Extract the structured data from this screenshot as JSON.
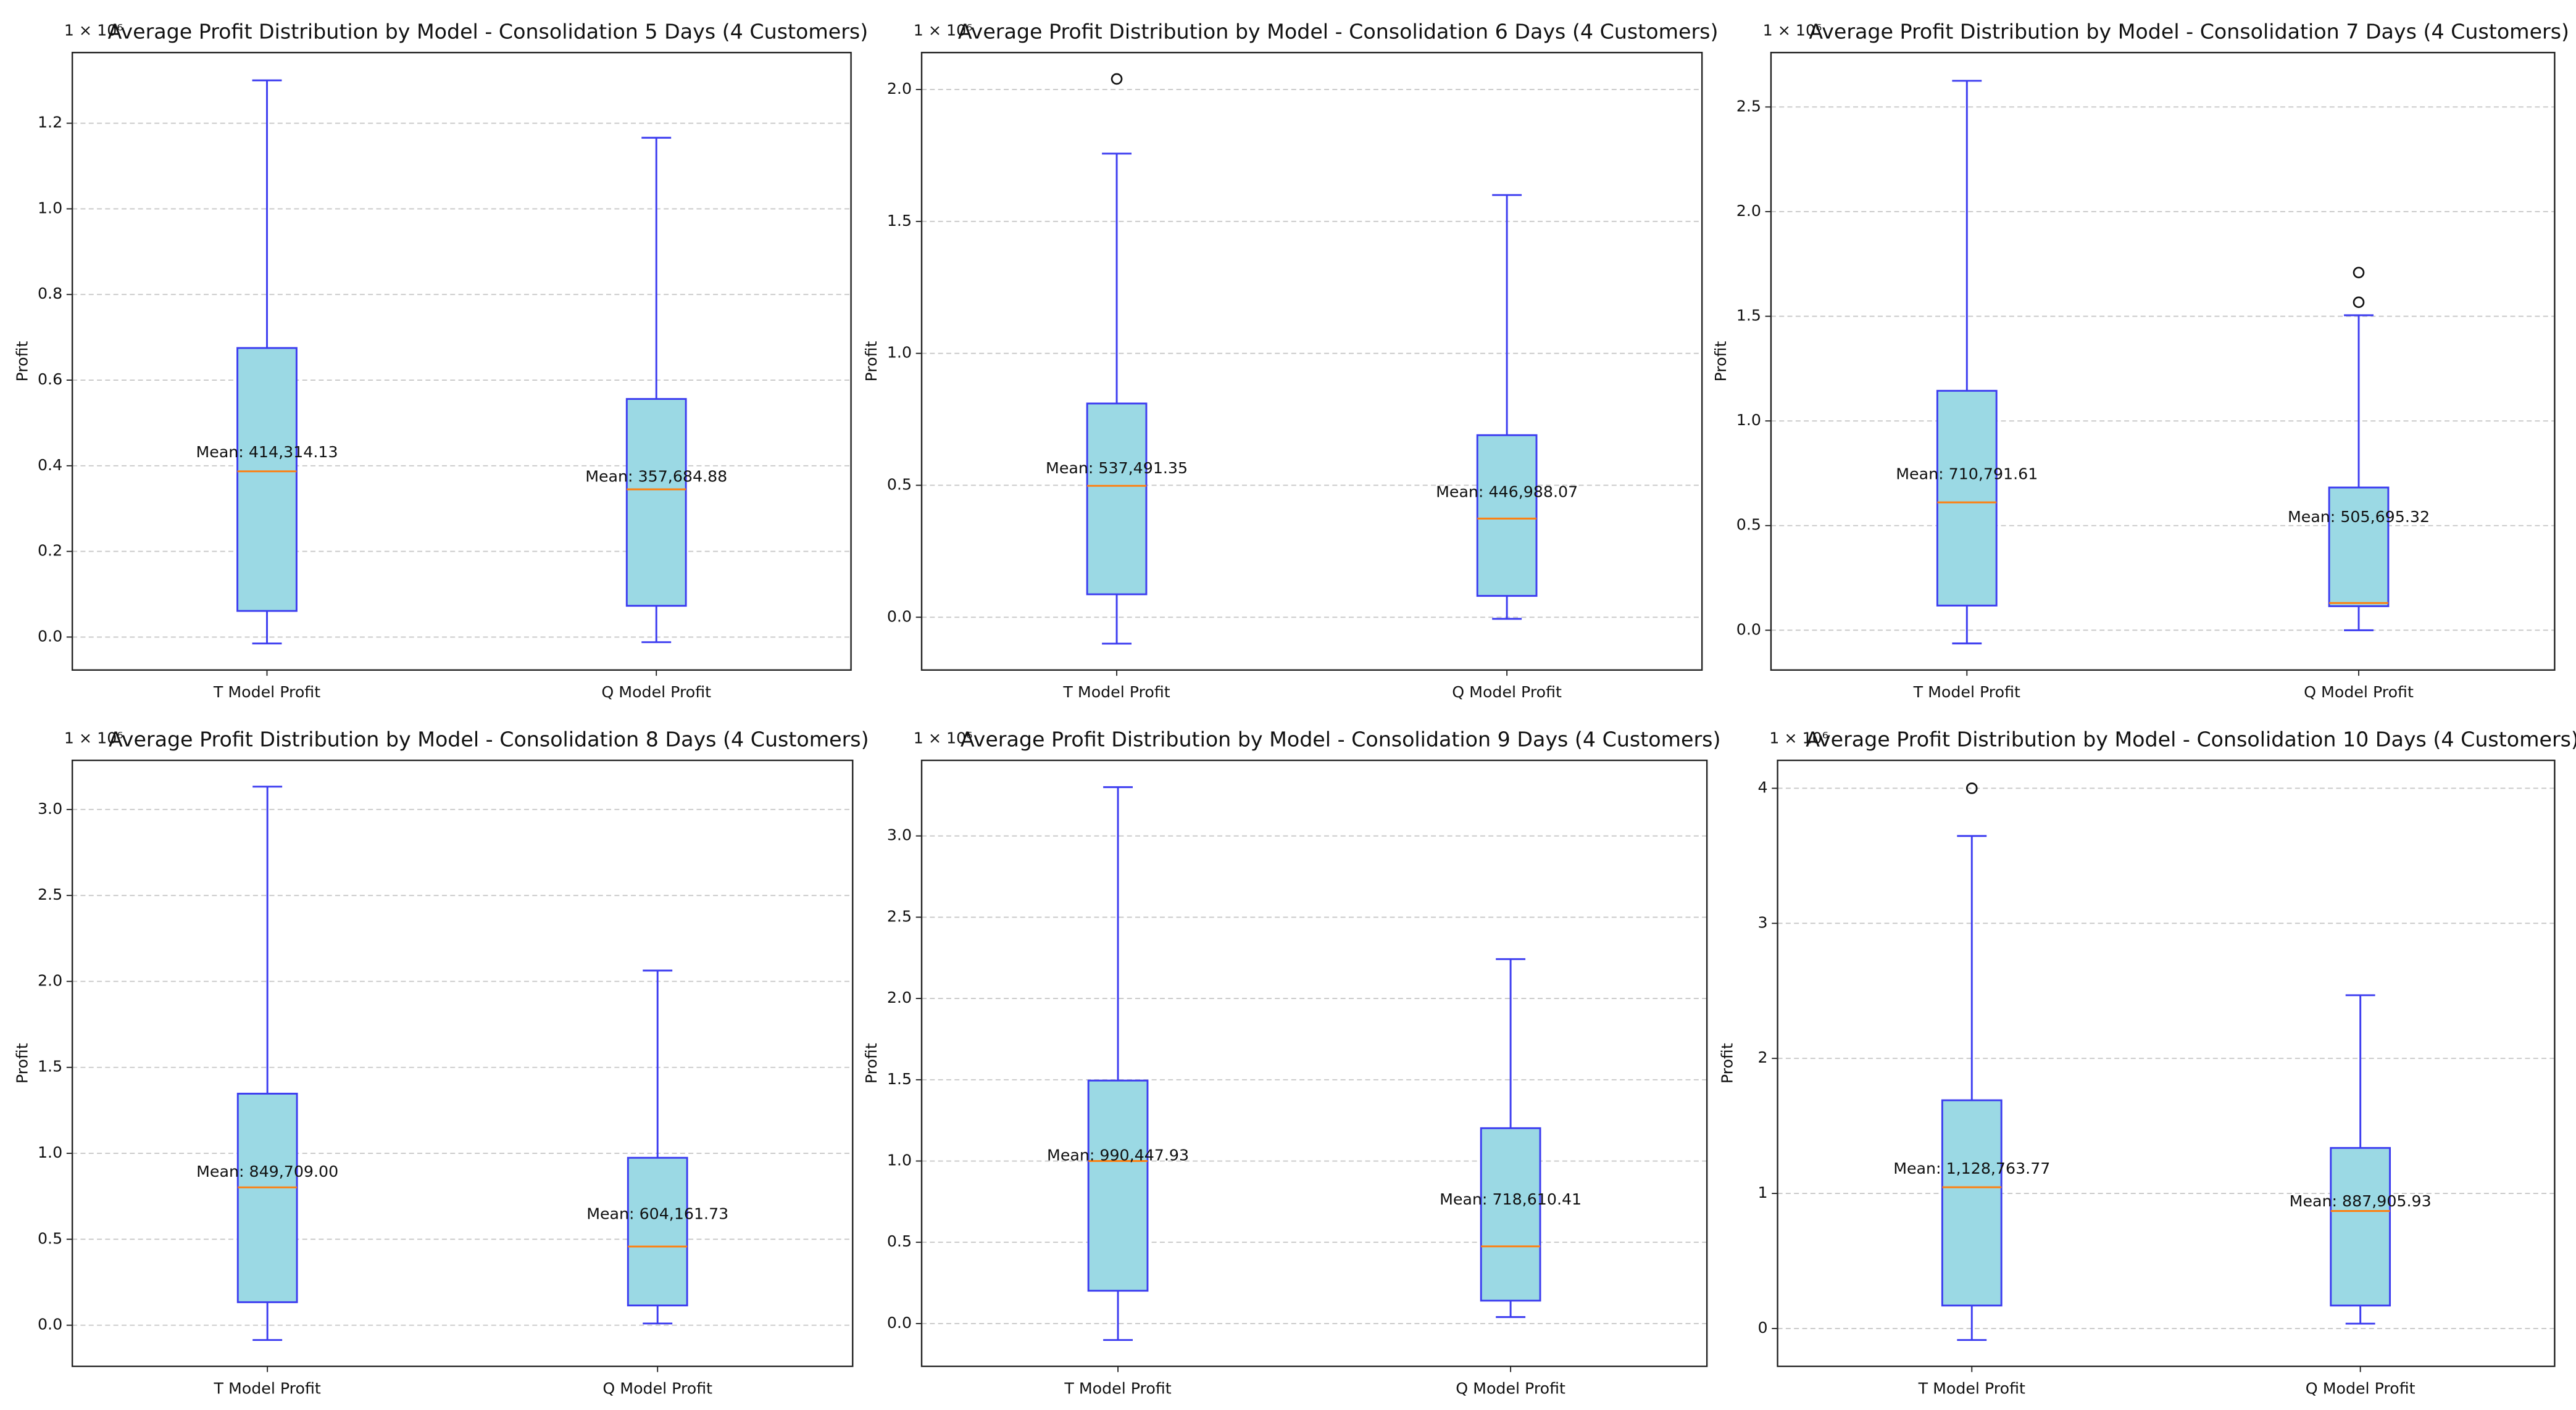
{
  "chart_data": [
    {
      "type": "box",
      "offset_label": "1 × 10⁶",
      "title": "Average Profit Distribution by Model - Consolidation 5 Days (4 Customers)",
      "ylabel": "Profit",
      "categories": [
        "T Model Profit",
        "Q Model Profit"
      ],
      "boxes": [
        {
          "whisker_low": -0.015,
          "q1": 0.061,
          "median": 0.387,
          "q3": 0.675,
          "whisker_high": 1.3,
          "outliers": [],
          "mean": 0.41431413,
          "mean_label": "Mean: 414,314.13"
        },
        {
          "whisker_low": -0.012,
          "q1": 0.073,
          "median": 0.345,
          "q3": 0.556,
          "whisker_high": 1.166,
          "outliers": [],
          "mean": 0.35768488,
          "mean_label": "Mean: 357,684.88"
        }
      ],
      "ylim": [
        -0.077,
        1.365
      ],
      "yticks": [
        {
          "value": 0,
          "label": "0.0"
        },
        {
          "value": 0.2,
          "label": "0.2"
        },
        {
          "value": 0.4,
          "label": "0.4"
        },
        {
          "value": 0.6,
          "label": "0.6"
        },
        {
          "value": 0.8,
          "label": "0.8"
        },
        {
          "value": 1.0,
          "label": "1.0"
        },
        {
          "value": 1.2,
          "label": "1.2"
        }
      ],
      "grid": true,
      "box_color": "#9bd9e4",
      "edge_color": "#3c3cf0",
      "median_color": "#ff7f0e",
      "mean_label_color": "#0000ff"
    },
    {
      "type": "box",
      "offset_label": "1 × 10⁶",
      "title": "Average Profit Distribution by Model - Consolidation 6 Days (4 Customers)",
      "ylabel": "Profit",
      "categories": [
        "T Model Profit",
        "Q Model Profit"
      ],
      "boxes": [
        {
          "whisker_low": -0.1,
          "q1": 0.087,
          "median": 0.498,
          "q3": 0.81,
          "whisker_high": 1.757,
          "outliers": [
            2.04
          ],
          "mean": 0.53749135,
          "mean_label": "Mean: 537,491.35"
        },
        {
          "whisker_low": -0.006,
          "q1": 0.081,
          "median": 0.374,
          "q3": 0.69,
          "whisker_high": 1.6,
          "outliers": [],
          "mean": 0.44698807,
          "mean_label": "Mean: 446,988.07"
        }
      ],
      "ylim": [
        -0.2,
        2.14
      ],
      "yticks": [
        {
          "value": 0,
          "label": "0.0"
        },
        {
          "value": 0.5,
          "label": "0.5"
        },
        {
          "value": 1.0,
          "label": "1.0"
        },
        {
          "value": 1.5,
          "label": "1.5"
        },
        {
          "value": 2.0,
          "label": "2.0"
        }
      ],
      "grid": true,
      "box_color": "#9bd9e4",
      "edge_color": "#3c3cf0",
      "median_color": "#ff7f0e",
      "mean_label_color": "#0000ff"
    },
    {
      "type": "box",
      "offset_label": "1 × 10⁶",
      "title": "Average Profit Distribution by Model - Consolidation 7 Days (4 Customers)",
      "ylabel": "Profit",
      "categories": [
        "T Model Profit",
        "Q Model Profit"
      ],
      "boxes": [
        {
          "whisker_low": -0.063,
          "q1": 0.118,
          "median": 0.611,
          "q3": 1.144,
          "whisker_high": 2.625,
          "outliers": [],
          "mean": 0.71079161,
          "mean_label": "Mean: 710,791.61"
        },
        {
          "whisker_low": 0.0,
          "q1": 0.115,
          "median": 0.13,
          "q3": 0.682,
          "whisker_high": 1.505,
          "outliers": [
            1.567,
            1.709
          ],
          "mean": 0.50569532,
          "mean_label": "Mean: 505,695.32"
        }
      ],
      "ylim": [
        -0.19,
        2.76
      ],
      "yticks": [
        {
          "value": 0,
          "label": "0.0"
        },
        {
          "value": 0.5,
          "label": "0.5"
        },
        {
          "value": 1.0,
          "label": "1.0"
        },
        {
          "value": 1.5,
          "label": "1.5"
        },
        {
          "value": 2.0,
          "label": "2.0"
        },
        {
          "value": 2.5,
          "label": "2.5"
        }
      ],
      "grid": true,
      "box_color": "#9bd9e4",
      "edge_color": "#3c3cf0",
      "median_color": "#ff7f0e",
      "mean_label_color": "#0000ff"
    },
    {
      "type": "box",
      "offset_label": "1 × 10⁶",
      "title": "Average Profit Distribution by Model - Consolidation 8 Days (4 Customers)",
      "ylabel": "Profit",
      "categories": [
        "T Model Profit",
        "Q Model Profit"
      ],
      "boxes": [
        {
          "whisker_low": -0.086,
          "q1": 0.134,
          "median": 0.802,
          "q3": 1.347,
          "whisker_high": 3.133,
          "outliers": [],
          "mean": 0.849709,
          "mean_label": "Mean: 849,709.00"
        },
        {
          "whisker_low": 0.01,
          "q1": 0.115,
          "median": 0.458,
          "q3": 0.974,
          "whisker_high": 2.063,
          "outliers": [],
          "mean": 0.60416173,
          "mean_label": "Mean: 604,161.73"
        }
      ],
      "ylim": [
        -0.239,
        3.286
      ],
      "yticks": [
        {
          "value": 0,
          "label": "0.0"
        },
        {
          "value": 0.5,
          "label": "0.5"
        },
        {
          "value": 1.0,
          "label": "1.0"
        },
        {
          "value": 1.5,
          "label": "1.5"
        },
        {
          "value": 2.0,
          "label": "2.0"
        },
        {
          "value": 2.5,
          "label": "2.5"
        },
        {
          "value": 3.0,
          "label": "3.0"
        }
      ],
      "grid": true,
      "box_color": "#9bd9e4",
      "edge_color": "#3c3cf0",
      "median_color": "#ff7f0e",
      "mean_label_color": "#0000ff"
    },
    {
      "type": "box",
      "offset_label": "1 × 10⁶",
      "title": "Average Profit Distribution by Model - Consolidation 9 Days (4 Customers)",
      "ylabel": "Profit",
      "categories": [
        "T Model Profit",
        "Q Model Profit"
      ],
      "boxes": [
        {
          "whisker_low": -0.101,
          "q1": 0.202,
          "median": 1.0,
          "q3": 1.495,
          "whisker_high": 3.3,
          "outliers": [],
          "mean": 0.99044793,
          "mean_label": "Mean: 990,447.93"
        },
        {
          "whisker_low": 0.04,
          "q1": 0.141,
          "median": 0.475,
          "q3": 1.202,
          "whisker_high": 2.242,
          "outliers": [],
          "mean": 0.71861041,
          "mean_label": "Mean: 718,610.41"
        }
      ],
      "ylim": [
        -0.263,
        3.465
      ],
      "yticks": [
        {
          "value": 0,
          "label": "0.0"
        },
        {
          "value": 0.5,
          "label": "0.5"
        },
        {
          "value": 1.0,
          "label": "1.0"
        },
        {
          "value": 1.5,
          "label": "1.5"
        },
        {
          "value": 2.0,
          "label": "2.0"
        },
        {
          "value": 2.5,
          "label": "2.5"
        },
        {
          "value": 3.0,
          "label": "3.0"
        }
      ],
      "grid": true,
      "box_color": "#9bd9e4",
      "edge_color": "#3c3cf0",
      "median_color": "#ff7f0e",
      "mean_label_color": "#0000ff"
    },
    {
      "type": "box",
      "offset_label": "1 × 10⁶",
      "title": "Average Profit Distribution by Model - Consolidation 10 Days (4 Customers)",
      "ylabel": "Profit",
      "categories": [
        "T Model Profit",
        "Q Model Profit"
      ],
      "boxes": [
        {
          "whisker_low": -0.085,
          "q1": 0.17,
          "median": 1.046,
          "q3": 1.69,
          "whisker_high": 3.647,
          "outliers": [
            4.0
          ],
          "mean": 1.12876377,
          "mean_label": "Mean: 1,128,763.77"
        },
        {
          "whisker_low": 0.036,
          "q1": 0.17,
          "median": 0.87,
          "q3": 1.337,
          "whisker_high": 2.468,
          "outliers": [],
          "mean": 0.88790593,
          "mean_label": "Mean: 887,905.93"
        }
      ],
      "ylim": [
        -0.28,
        4.207
      ],
      "yticks": [
        0,
        1,
        2,
        3,
        4
      ],
      "grid": true,
      "box_color": "#9bd9e4",
      "edge_color": "#3c3cf0",
      "median_color": "#ff7f0e",
      "mean_label_color": "#0000ff"
    }
  ]
}
